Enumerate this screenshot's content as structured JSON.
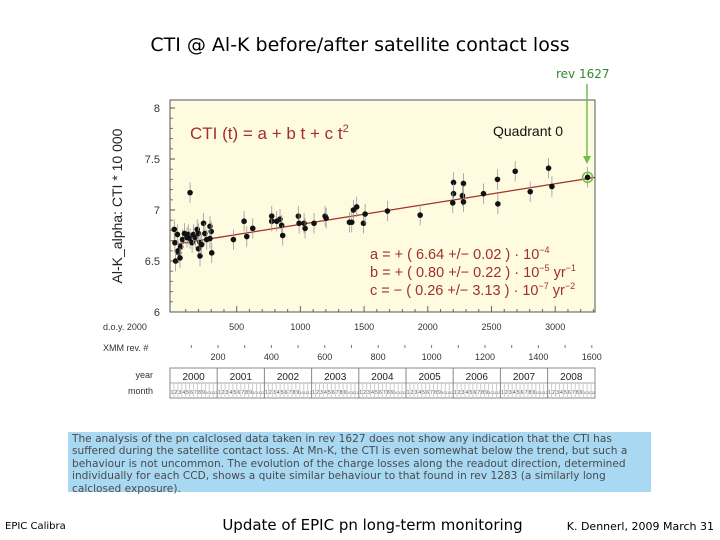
{
  "slide": {
    "title": "CTI @ Al-K before/after satellite contact loss",
    "annotation": "rev 1627",
    "note": "The analysis of the pn calclosed data taken in rev 1627 does not show any indication that the CTI has suffered during the satellite contact loss. At Mn-K, the CTI is even somewhat below the trend, but such a behaviour is not uncommon. The evolution of the charge losses along the readout direction, determined individually for each CCD, shows a quite similar behaviour to that found in rev 1283 (a similarly long calclosed exposure).",
    "footer_left": "EPIC Calibra",
    "footer_center": "Update of EPIC pn long-term monitoring",
    "footer_right": "K. Dennerl, 2009 March 31"
  },
  "colors": {
    "plot_bg": "#fffbe0",
    "fit": "#a0302a",
    "formula": "#a0302a",
    "highlight": "#6cc04a",
    "note_bg": "#a9d9f2"
  },
  "chart_data": {
    "type": "scatter",
    "ylabel": "Al-K_alpha:  CTI * 10 000",
    "formula": "CTI (t)  =  a + b t + c t",
    "formula_exp": "2",
    "panel_label": "Quadrant 0",
    "ylim": [
      6,
      8
    ],
    "yticks": [
      "6",
      "6.5",
      "7",
      "7.5",
      "8"
    ],
    "xlim": [
      0,
      3314
    ],
    "x_axis_label": "d.o.y. 2000",
    "xticks": [
      "500",
      "1000",
      "1500",
      "2000",
      "2500",
      "3000"
    ],
    "rev_axis_label": "XMM rev. #",
    "rev_ticks": [
      "200",
      "400",
      "600",
      "800",
      "1000",
      "1200",
      "1400",
      "1600"
    ],
    "year_label": "year",
    "month_label": "month",
    "years": [
      "2000",
      "2001",
      "2002",
      "2003",
      "2004",
      "2005",
      "2006",
      "2007",
      "2008"
    ],
    "months": [
      "1",
      "2",
      "3",
      "4",
      "5",
      "6",
      "7",
      "8",
      "9",
      "10",
      "11",
      "12"
    ],
    "coefficients": [
      {
        "text": "a  =  +  ( 6.64 +/− 0.02 ) · 10",
        "exp": "−4",
        "unit": "",
        "unit_exp": ""
      },
      {
        "text": "b  =  +  ( 0.80 +/− 0.22 ) · 10",
        "exp": "−5",
        "unit": "yr",
        "unit_exp": "−1"
      },
      {
        "text": "c  =  −  ( 0.26 +/− 3.13 ) · 10",
        "exp": "−7",
        "unit": "yr",
        "unit_exp": "−2"
      }
    ],
    "fit_line": {
      "doy": [
        0,
        3314
      ],
      "value": [
        6.66,
        7.32
      ]
    },
    "typical_error": 0.1,
    "highlighted_point": {
      "doy": 3254,
      "value": 7.32,
      "rev": 1627
    },
    "points": [
      [
        10,
        6.81
      ],
      [
        15,
        6.68
      ],
      [
        20,
        6.5
      ],
      [
        35,
        6.76
      ],
      [
        45,
        6.58
      ],
      [
        40,
        6.6
      ],
      [
        60,
        6.64
      ],
      [
        75,
        6.71
      ],
      [
        90,
        6.77
      ],
      [
        55,
        6.53
      ],
      [
        110,
        6.73
      ],
      [
        120,
        6.76
      ],
      [
        134,
        7.17
      ],
      [
        134,
        6.72
      ],
      [
        150,
        6.68
      ],
      [
        160,
        6.76
      ],
      [
        175,
        6.73
      ],
      [
        190,
        6.81
      ],
      [
        200,
        6.77
      ],
      [
        212,
        6.68
      ],
      [
        200,
        6.62
      ],
      [
        212,
        6.55
      ],
      [
        225,
        6.66
      ],
      [
        240,
        6.87
      ],
      [
        250,
        6.77
      ],
      [
        265,
        6.71
      ],
      [
        290,
        6.84
      ],
      [
        300,
        6.79
      ],
      [
        304,
        6.58
      ],
      [
        290,
        6.72
      ],
      [
        474,
        6.71
      ],
      [
        558,
        6.89
      ],
      [
        579,
        6.74
      ],
      [
        626,
        6.82
      ],
      [
        775,
        6.89
      ],
      [
        775,
        6.94
      ],
      [
        814,
        6.89
      ],
      [
        840,
        6.91
      ],
      [
        853,
        6.85
      ],
      [
        861,
        6.75
      ],
      [
        984,
        6.94
      ],
      [
        990,
        6.87
      ],
      [
        1029,
        6.87
      ],
      [
        1037,
        6.82
      ],
      [
        1107,
        6.87
      ],
      [
        1194,
        6.94
      ],
      [
        1202,
        6.92
      ],
      [
        1385,
        6.88
      ],
      [
        1403,
        6.88
      ],
      [
        1416,
        7.0
      ],
      [
        1442,
        7.03
      ],
      [
        1495,
        6.87
      ],
      [
        1508,
        6.96
      ],
      [
        1683,
        6.99
      ],
      [
        1940,
        6.95
      ],
      [
        2202,
        7.27
      ],
      [
        2202,
        7.16
      ],
      [
        2196,
        7.07
      ],
      [
        2280,
        7.26
      ],
      [
        2272,
        7.14
      ],
      [
        2280,
        7.08
      ],
      [
        2437,
        7.16
      ],
      [
        2547,
        7.3
      ],
      [
        2550,
        7.06
      ],
      [
        2686,
        7.38
      ],
      [
        2804,
        7.18
      ],
      [
        2948,
        7.41
      ],
      [
        2974,
        7.23
      ],
      [
        3254,
        7.32
      ]
    ]
  }
}
